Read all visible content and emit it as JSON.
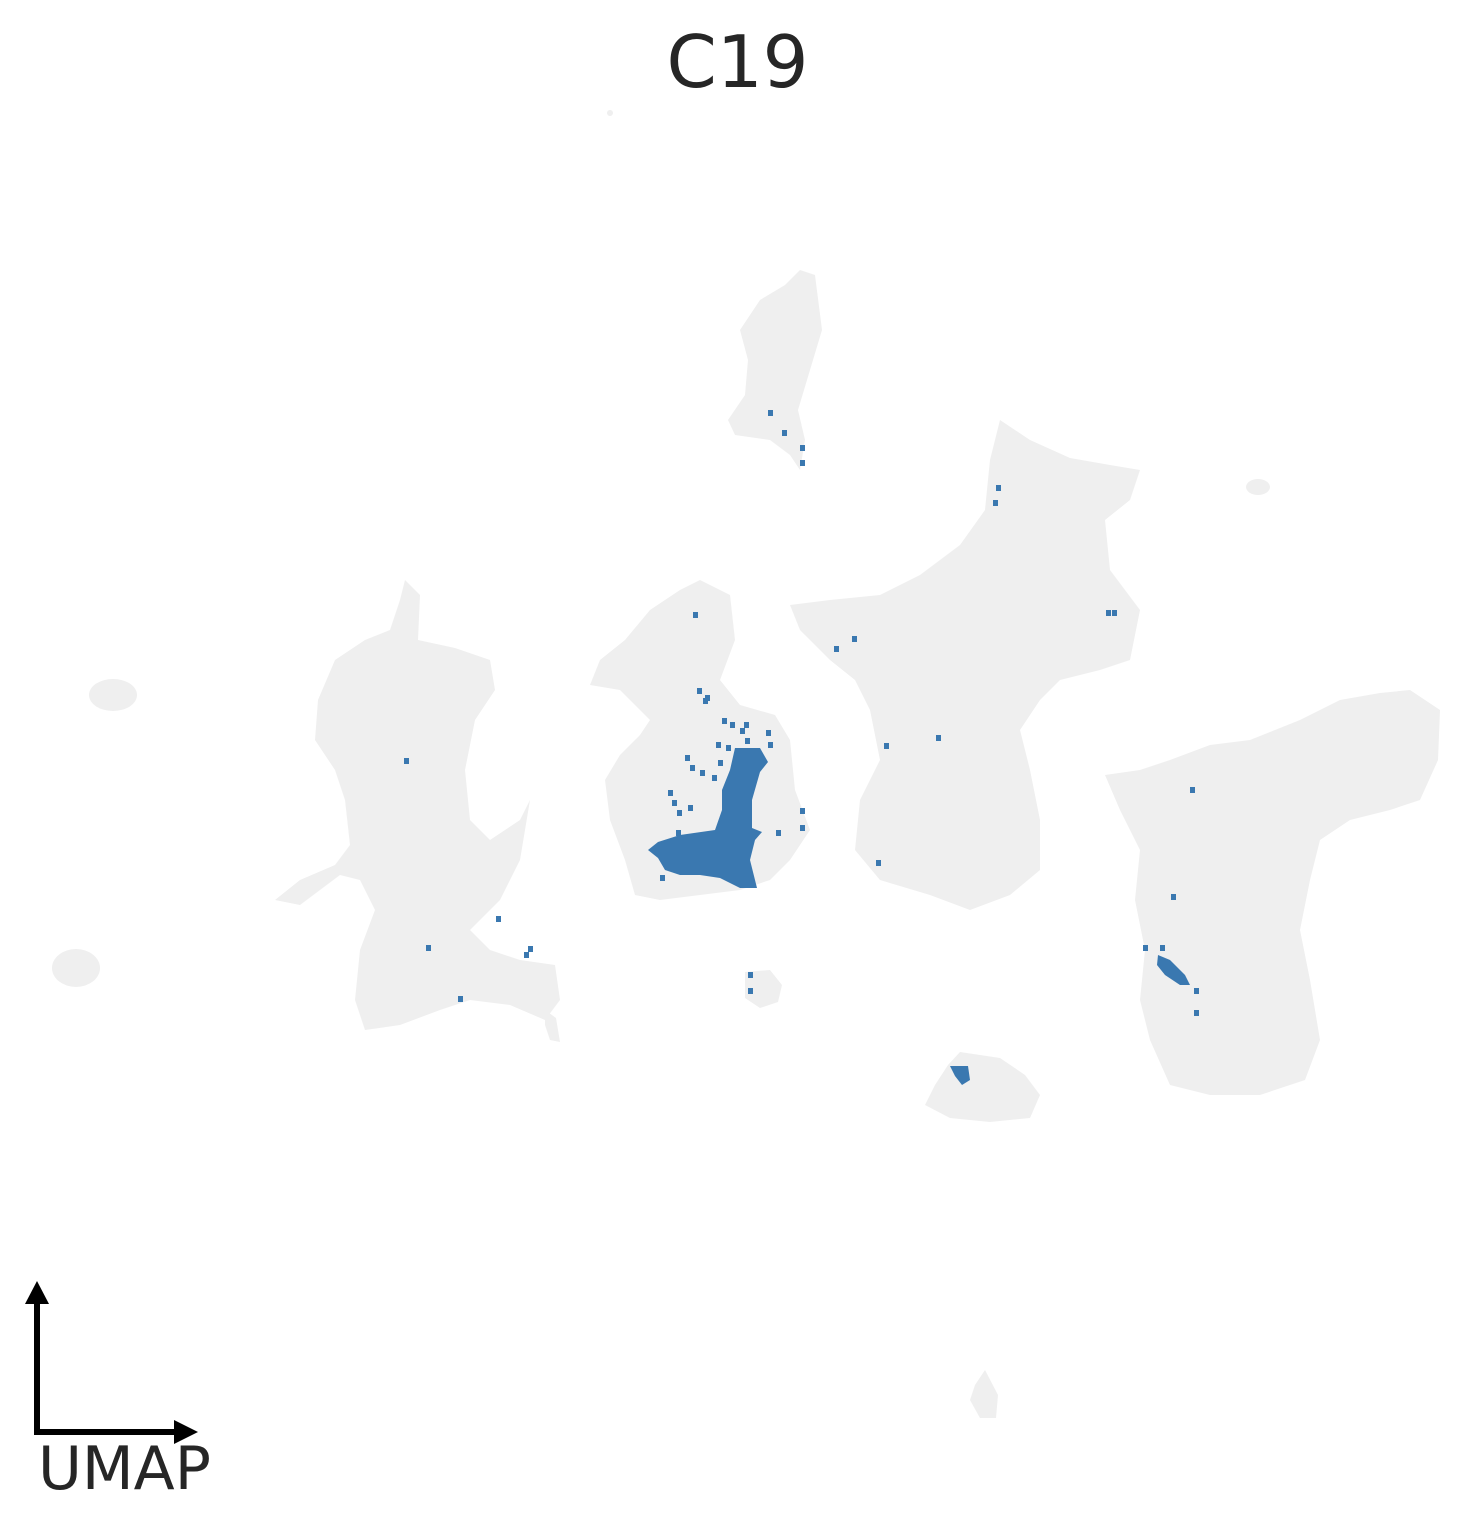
{
  "chart_data": {
    "type": "scatter",
    "title": "C19",
    "axis_label": "UMAP",
    "colors": {
      "background_cells": "#efefef",
      "highlighted_cells": "#3a78b0",
      "axis_arrows": "#000000",
      "text": "#262626"
    },
    "grid": false,
    "legend": "none",
    "highlighted_group": "C19"
  }
}
